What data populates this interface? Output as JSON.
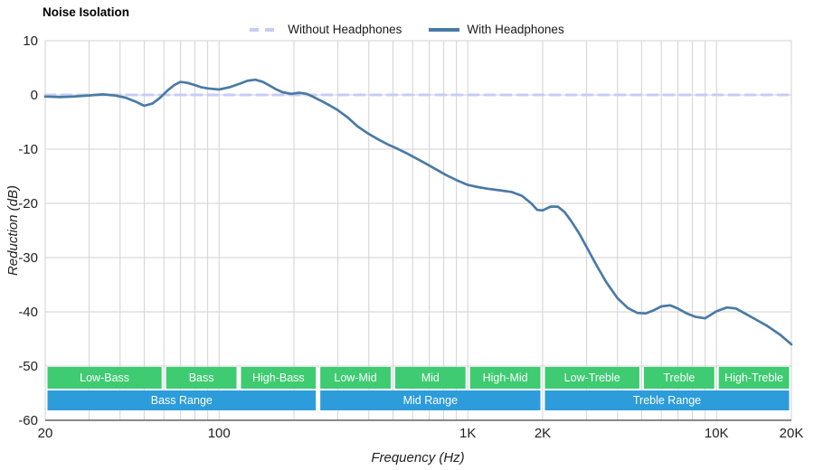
{
  "title": "Noise Isolation",
  "legend": [
    {
      "label": "Without Headphones",
      "color": "#c5ccf5",
      "dash": "10,7",
      "width": 4
    },
    {
      "label": "With Headphones",
      "color": "#4a7aa5",
      "dash": null,
      "width": 4
    }
  ],
  "chart_data": {
    "type": "line",
    "title": "Noise Isolation",
    "xlabel": "Frequency (Hz)",
    "ylabel": "Reduction (dB)",
    "x_scale": "log",
    "xlim": [
      20,
      20000
    ],
    "ylim": [
      -60,
      10
    ],
    "grid": true,
    "grid_color": "#d2d2d2",
    "axis_line_color": "#444444",
    "tick_color": "#222222",
    "legend_position": "top-center",
    "x_ticks": [
      {
        "value": 20,
        "label": "20"
      },
      {
        "value": 100,
        "label": "100"
      },
      {
        "value": 1000,
        "label": "1K"
      },
      {
        "value": 2000,
        "label": "2K"
      },
      {
        "value": 10000,
        "label": "10K"
      },
      {
        "value": 20000,
        "label": "20K"
      }
    ],
    "x_gridlines": [
      20,
      30,
      40,
      50,
      60,
      70,
      80,
      90,
      100,
      200,
      300,
      400,
      500,
      600,
      700,
      800,
      900,
      1000,
      2000,
      3000,
      4000,
      5000,
      6000,
      7000,
      8000,
      9000,
      10000,
      20000
    ],
    "y_ticks": [
      10,
      0,
      -10,
      -20,
      -30,
      -40,
      -50,
      -60
    ],
    "series": [
      {
        "name": "Without Headphones",
        "color": "#c5ccf5",
        "width": 3,
        "dash": "11,7",
        "points": [
          [
            20,
            0
          ],
          [
            20000,
            0
          ]
        ]
      },
      {
        "name": "With Headphones",
        "color": "#4a7aa5",
        "width": 2.7,
        "dash": null,
        "points": [
          [
            20,
            -0.3
          ],
          [
            23,
            -0.4
          ],
          [
            26,
            -0.3
          ],
          [
            30,
            -0.1
          ],
          [
            34,
            0.1
          ],
          [
            38,
            -0.1
          ],
          [
            42,
            -0.5
          ],
          [
            46,
            -1.2
          ],
          [
            50,
            -2.0
          ],
          [
            54,
            -1.6
          ],
          [
            58,
            -0.5
          ],
          [
            62,
            0.8
          ],
          [
            66,
            1.8
          ],
          [
            70,
            2.4
          ],
          [
            75,
            2.2
          ],
          [
            80,
            1.8
          ],
          [
            85,
            1.4
          ],
          [
            90,
            1.2
          ],
          [
            100,
            1.0
          ],
          [
            110,
            1.4
          ],
          [
            120,
            2.0
          ],
          [
            130,
            2.6
          ],
          [
            140,
            2.8
          ],
          [
            150,
            2.4
          ],
          [
            160,
            1.7
          ],
          [
            170,
            1.0
          ],
          [
            180,
            0.5
          ],
          [
            195,
            0.2
          ],
          [
            210,
            0.4
          ],
          [
            225,
            0.2
          ],
          [
            240,
            -0.4
          ],
          [
            260,
            -1.2
          ],
          [
            280,
            -2.0
          ],
          [
            300,
            -2.8
          ],
          [
            330,
            -4.2
          ],
          [
            360,
            -5.8
          ],
          [
            400,
            -7.2
          ],
          [
            440,
            -8.3
          ],
          [
            480,
            -9.2
          ],
          [
            520,
            -9.9
          ],
          [
            570,
            -10.8
          ],
          [
            620,
            -11.7
          ],
          [
            680,
            -12.7
          ],
          [
            750,
            -13.8
          ],
          [
            820,
            -14.8
          ],
          [
            900,
            -15.7
          ],
          [
            1000,
            -16.6
          ],
          [
            1100,
            -17.0
          ],
          [
            1200,
            -17.3
          ],
          [
            1350,
            -17.6
          ],
          [
            1500,
            -17.9
          ],
          [
            1650,
            -18.6
          ],
          [
            1800,
            -20.0
          ],
          [
            1900,
            -21.2
          ],
          [
            2000,
            -21.3
          ],
          [
            2150,
            -20.6
          ],
          [
            2300,
            -20.6
          ],
          [
            2450,
            -21.6
          ],
          [
            2600,
            -23.2
          ],
          [
            2800,
            -25.5
          ],
          [
            3000,
            -28.0
          ],
          [
            3300,
            -31.5
          ],
          [
            3600,
            -34.5
          ],
          [
            4000,
            -37.5
          ],
          [
            4400,
            -39.3
          ],
          [
            4800,
            -40.2
          ],
          [
            5200,
            -40.3
          ],
          [
            5600,
            -39.7
          ],
          [
            6000,
            -39.0
          ],
          [
            6500,
            -38.8
          ],
          [
            7000,
            -39.4
          ],
          [
            7600,
            -40.3
          ],
          [
            8200,
            -40.9
          ],
          [
            9000,
            -41.2
          ],
          [
            10000,
            -39.9
          ],
          [
            11000,
            -39.2
          ],
          [
            12000,
            -39.4
          ],
          [
            13000,
            -40.3
          ],
          [
            14500,
            -41.5
          ],
          [
            16000,
            -42.6
          ],
          [
            18000,
            -44.2
          ],
          [
            20000,
            -46.0
          ]
        ]
      }
    ],
    "bands": {
      "sub_color": "#3ecb71",
      "main_color": "#2d9cdb",
      "text_color": "#ffffff",
      "sub": [
        {
          "label": "Low-Bass",
          "from": 20,
          "to": 60
        },
        {
          "label": "Bass",
          "from": 60,
          "to": 120
        },
        {
          "label": "High-Bass",
          "from": 120,
          "to": 250
        },
        {
          "label": "Low-Mid",
          "from": 250,
          "to": 500
        },
        {
          "label": "Mid",
          "from": 500,
          "to": 1000
        },
        {
          "label": "High-Mid",
          "from": 1000,
          "to": 2000
        },
        {
          "label": "Low-Treble",
          "from": 2000,
          "to": 5000
        },
        {
          "label": "Treble",
          "from": 5000,
          "to": 10000
        },
        {
          "label": "High-Treble",
          "from": 10000,
          "to": 20000
        }
      ],
      "main": [
        {
          "label": "Bass Range",
          "from": 20,
          "to": 250
        },
        {
          "label": "Mid Range",
          "from": 250,
          "to": 2000
        },
        {
          "label": "Treble Range",
          "from": 2000,
          "to": 20000
        }
      ]
    }
  }
}
